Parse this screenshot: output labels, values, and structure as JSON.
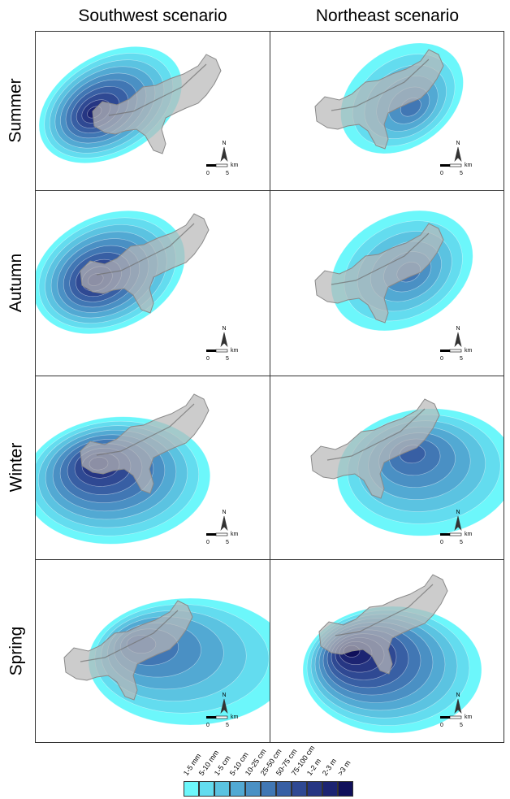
{
  "columns": [
    {
      "title": "Southwest scenario"
    },
    {
      "title": "Northeast scenario"
    }
  ],
  "rows": [
    {
      "label": "Summer"
    },
    {
      "label": "Autumn"
    },
    {
      "label": "Winter"
    },
    {
      "label": "Spring"
    }
  ],
  "scalebar": {
    "north": "N",
    "unit": "km",
    "start": "0",
    "end": "5"
  },
  "legend": {
    "classes": [
      {
        "label": "1-5 mm",
        "color": "#6cf7fb"
      },
      {
        "label": "5-10 mm",
        "color": "#63dcef"
      },
      {
        "label": "1-5 cm",
        "color": "#5bc3e1"
      },
      {
        "label": "5-10 cm",
        "color": "#52a9d3"
      },
      {
        "label": "10-25 cm",
        "color": "#4a90c4"
      },
      {
        "label": "25-50 cm",
        "color": "#4177b4"
      },
      {
        "label": "50-75 cm",
        "color": "#385fa4"
      },
      {
        "label": "75-100 cm",
        "color": "#2f4993"
      },
      {
        "label": "1-2 m",
        "color": "#263683"
      },
      {
        "label": "2-3 m",
        "color": "#1c2472"
      },
      {
        "label": ">3 m",
        "color": "#0f0f5a"
      }
    ]
  }
}
